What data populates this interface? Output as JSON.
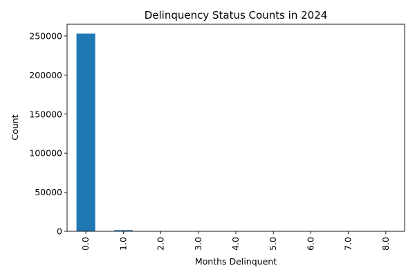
{
  "chart_data": {
    "type": "bar",
    "title": "Delinquency Status Counts in 2024",
    "xlabel": "Months Delinquent",
    "ylabel": "Count",
    "categories": [
      "0.0",
      "1.0",
      "2.0",
      "3.0",
      "4.0",
      "5.0",
      "6.0",
      "7.0",
      "8.0"
    ],
    "values": [
      253000,
      1500,
      450,
      150,
      80,
      40,
      25,
      15,
      10
    ],
    "ylim": [
      0,
      265000
    ],
    "yticks": [
      0,
      50000,
      100000,
      150000,
      200000,
      250000
    ],
    "ytick_labels": [
      "0",
      "50000",
      "100000",
      "150000",
      "200000",
      "250000"
    ],
    "bar_color": "#1f77b4",
    "grid": false,
    "legend": "none"
  }
}
